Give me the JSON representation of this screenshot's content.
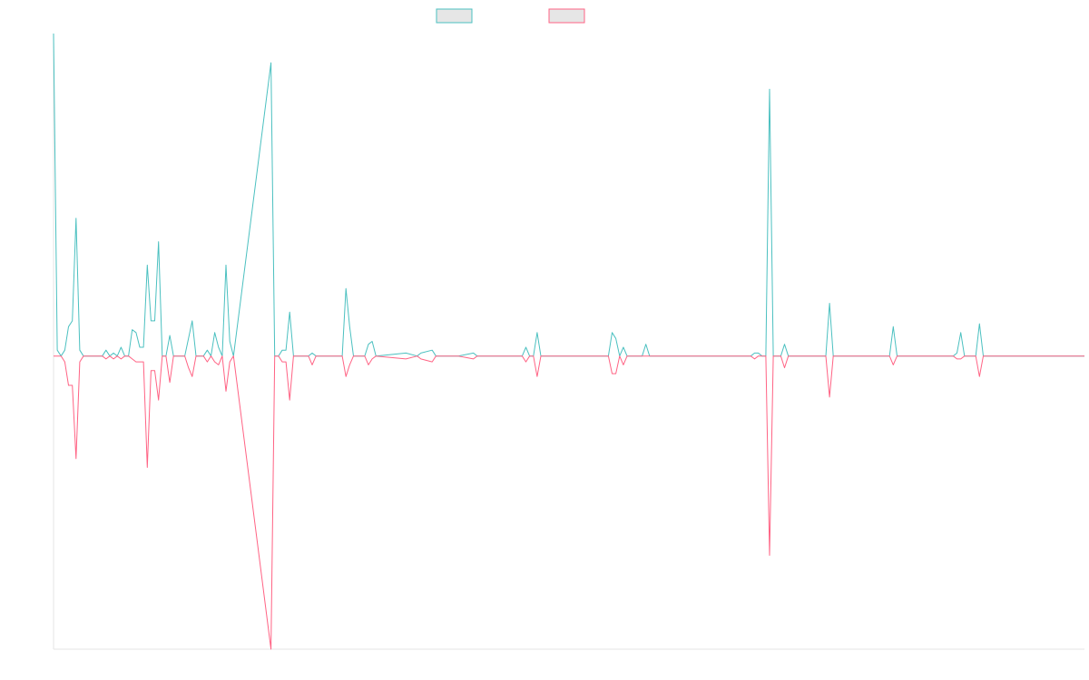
{
  "chart_data": {
    "type": "line",
    "title": "",
    "xlabel": "",
    "ylabel": "",
    "x_range": [
      0,
      275
    ],
    "ylim": [
      -100,
      110
    ],
    "grid": false,
    "legend_position": "top-center",
    "series": [
      {
        "color": "#4bc0c0",
        "legend_fill": "#e6e6e6",
        "points": [
          [
            0,
            110
          ],
          [
            1,
            2
          ],
          [
            2,
            0
          ],
          [
            3,
            2
          ],
          [
            4,
            10
          ],
          [
            5,
            12
          ],
          [
            6,
            47
          ],
          [
            7,
            2
          ],
          [
            8,
            0
          ],
          [
            9,
            0
          ],
          [
            10,
            0
          ],
          [
            11,
            0
          ],
          [
            12,
            0
          ],
          [
            13,
            0
          ],
          [
            14,
            2
          ],
          [
            15,
            0
          ],
          [
            16,
            1
          ],
          [
            17,
            0
          ],
          [
            18,
            3
          ],
          [
            19,
            0
          ],
          [
            20,
            0
          ],
          [
            21,
            9
          ],
          [
            22,
            8
          ],
          [
            23,
            3
          ],
          [
            24,
            3
          ],
          [
            25,
            31
          ],
          [
            26,
            12
          ],
          [
            27,
            12
          ],
          [
            28,
            39
          ],
          [
            29,
            0
          ],
          [
            30,
            0
          ],
          [
            31,
            7
          ],
          [
            32,
            0
          ],
          [
            33,
            0
          ],
          [
            34,
            0
          ],
          [
            35,
            0
          ],
          [
            36,
            6
          ],
          [
            37,
            12
          ],
          [
            38,
            0
          ],
          [
            39,
            0
          ],
          [
            40,
            0
          ],
          [
            41,
            2
          ],
          [
            42,
            0
          ],
          [
            43,
            8
          ],
          [
            44,
            3
          ],
          [
            45,
            0
          ],
          [
            46,
            31
          ],
          [
            47,
            5
          ],
          [
            48,
            0
          ],
          [
            58,
            100
          ],
          [
            59,
            0
          ],
          [
            60,
            0
          ],
          [
            61,
            2
          ],
          [
            62,
            2
          ],
          [
            63,
            15
          ],
          [
            64,
            0
          ],
          [
            65,
            0
          ],
          [
            66,
            0
          ],
          [
            67,
            0
          ],
          [
            68,
            0
          ],
          [
            69,
            1
          ],
          [
            70,
            0
          ],
          [
            77,
            0
          ],
          [
            78,
            23
          ],
          [
            79,
            10
          ],
          [
            80,
            0
          ],
          [
            81,
            0
          ],
          [
            82,
            0
          ],
          [
            83,
            0
          ],
          [
            84,
            4
          ],
          [
            85,
            5
          ],
          [
            86,
            0
          ],
          [
            94,
            1
          ],
          [
            97,
            0
          ],
          [
            98,
            1
          ],
          [
            101,
            2
          ],
          [
            102,
            0
          ],
          [
            108,
            0
          ],
          [
            112,
            1
          ],
          [
            113,
            0
          ],
          [
            125,
            0
          ],
          [
            126,
            3
          ],
          [
            127,
            0
          ],
          [
            128,
            0
          ],
          [
            129,
            8
          ],
          [
            130,
            0
          ],
          [
            135,
            0
          ],
          [
            136,
            0
          ],
          [
            138,
            0
          ],
          [
            139,
            0
          ],
          [
            148,
            0
          ],
          [
            149,
            8
          ],
          [
            150,
            6
          ],
          [
            151,
            0
          ],
          [
            152,
            3
          ],
          [
            153,
            0
          ],
          [
            157,
            0
          ],
          [
            158,
            4
          ],
          [
            159,
            0
          ],
          [
            160,
            0
          ],
          [
            186,
            0
          ],
          [
            187,
            1
          ],
          [
            188,
            1
          ],
          [
            189,
            0
          ],
          [
            190,
            0
          ],
          [
            191,
            91
          ],
          [
            192,
            0
          ],
          [
            193,
            0
          ],
          [
            194,
            0
          ],
          [
            195,
            4
          ],
          [
            196,
            0
          ],
          [
            206,
            0
          ],
          [
            207,
            18
          ],
          [
            208,
            0
          ],
          [
            223,
            0
          ],
          [
            224,
            10
          ],
          [
            225,
            0
          ],
          [
            240,
            0
          ],
          [
            241,
            1
          ],
          [
            242,
            8
          ],
          [
            243,
            0
          ],
          [
            246,
            0
          ],
          [
            247,
            11
          ],
          [
            248,
            0
          ],
          [
            249,
            0
          ],
          [
            275,
            0
          ]
        ]
      },
      {
        "color": "#ff6384",
        "legend_fill": "#e6e6e6",
        "points": [
          [
            0,
            0
          ],
          [
            1,
            0
          ],
          [
            2,
            0
          ],
          [
            3,
            -2
          ],
          [
            4,
            -10
          ],
          [
            5,
            -10
          ],
          [
            6,
            -35
          ],
          [
            7,
            -2
          ],
          [
            8,
            0
          ],
          [
            9,
            0
          ],
          [
            10,
            0
          ],
          [
            11,
            0
          ],
          [
            12,
            0
          ],
          [
            13,
            0
          ],
          [
            14,
            -1
          ],
          [
            15,
            0
          ],
          [
            16,
            -1
          ],
          [
            17,
            0
          ],
          [
            18,
            -1
          ],
          [
            19,
            0
          ],
          [
            20,
            0
          ],
          [
            21,
            -1
          ],
          [
            22,
            -2
          ],
          [
            23,
            -2
          ],
          [
            24,
            -2
          ],
          [
            25,
            -38
          ],
          [
            26,
            -5
          ],
          [
            27,
            -5
          ],
          [
            28,
            -15
          ],
          [
            29,
            0
          ],
          [
            30,
            0
          ],
          [
            31,
            -9
          ],
          [
            32,
            0
          ],
          [
            33,
            0
          ],
          [
            34,
            0
          ],
          [
            35,
            0
          ],
          [
            36,
            -4
          ],
          [
            37,
            -7
          ],
          [
            38,
            0
          ],
          [
            39,
            0
          ],
          [
            40,
            0
          ],
          [
            41,
            -2
          ],
          [
            42,
            0
          ],
          [
            43,
            -2
          ],
          [
            44,
            -3
          ],
          [
            45,
            0
          ],
          [
            46,
            -12
          ],
          [
            47,
            -2
          ],
          [
            48,
            0
          ],
          [
            58,
            -100
          ],
          [
            59,
            0
          ],
          [
            60,
            0
          ],
          [
            61,
            -2
          ],
          [
            62,
            -2
          ],
          [
            63,
            -15
          ],
          [
            64,
            0
          ],
          [
            65,
            0
          ],
          [
            66,
            0
          ],
          [
            67,
            0
          ],
          [
            68,
            0
          ],
          [
            69,
            -3
          ],
          [
            70,
            0
          ],
          [
            77,
            0
          ],
          [
            78,
            -7
          ],
          [
            79,
            -3
          ],
          [
            80,
            0
          ],
          [
            81,
            0
          ],
          [
            82,
            0
          ],
          [
            83,
            0
          ],
          [
            84,
            -3
          ],
          [
            85,
            -1
          ],
          [
            86,
            0
          ],
          [
            94,
            -1
          ],
          [
            97,
            0
          ],
          [
            98,
            -1
          ],
          [
            101,
            -2
          ],
          [
            102,
            0
          ],
          [
            108,
            0
          ],
          [
            112,
            -1
          ],
          [
            113,
            0
          ],
          [
            125,
            0
          ],
          [
            126,
            -2
          ],
          [
            127,
            0
          ],
          [
            128,
            0
          ],
          [
            129,
            -7
          ],
          [
            130,
            0
          ],
          [
            135,
            0
          ],
          [
            136,
            0
          ],
          [
            138,
            0
          ],
          [
            139,
            0
          ],
          [
            148,
            0
          ],
          [
            149,
            -6
          ],
          [
            150,
            -6
          ],
          [
            151,
            0
          ],
          [
            152,
            -3
          ],
          [
            153,
            0
          ],
          [
            157,
            0
          ],
          [
            158,
            0
          ],
          [
            159,
            0
          ],
          [
            160,
            0
          ],
          [
            186,
            0
          ],
          [
            187,
            -1
          ],
          [
            188,
            0
          ],
          [
            189,
            0
          ],
          [
            190,
            0
          ],
          [
            191,
            -68
          ],
          [
            192,
            0
          ],
          [
            193,
            0
          ],
          [
            194,
            0
          ],
          [
            195,
            -4
          ],
          [
            196,
            0
          ],
          [
            206,
            0
          ],
          [
            207,
            -14
          ],
          [
            208,
            0
          ],
          [
            223,
            0
          ],
          [
            224,
            -3
          ],
          [
            225,
            0
          ],
          [
            240,
            0
          ],
          [
            241,
            -1
          ],
          [
            242,
            -1
          ],
          [
            243,
            0
          ],
          [
            246,
            0
          ],
          [
            247,
            -7
          ],
          [
            248,
            0
          ],
          [
            249,
            0
          ],
          [
            275,
            0
          ]
        ]
      }
    ]
  }
}
